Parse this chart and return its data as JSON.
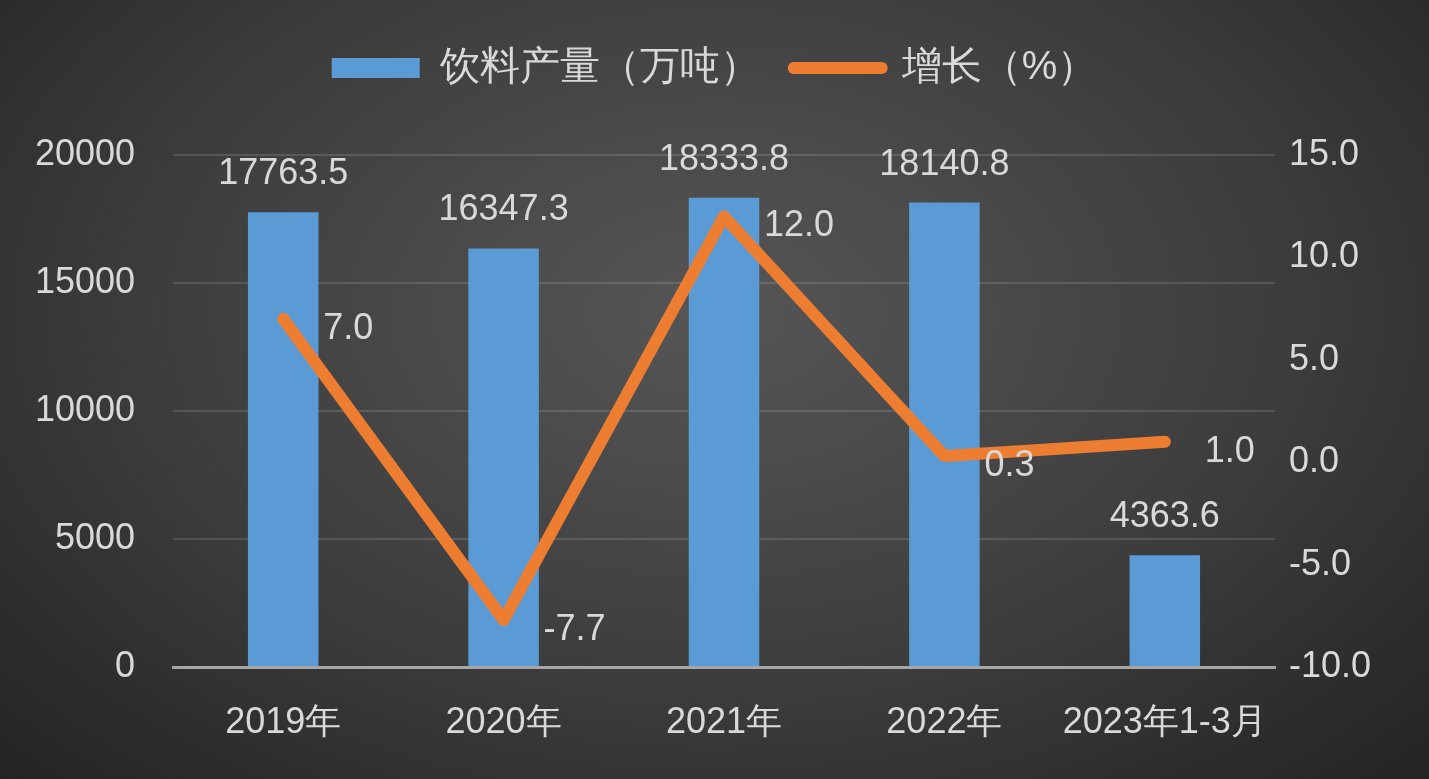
{
  "chart_data": {
    "type": "bar",
    "categories": [
      "2019年",
      "2020年",
      "2021年",
      "2022年",
      "2023年1-3月"
    ],
    "series": [
      {
        "name": "饮料产量（万吨）",
        "color": "#5b9bd5",
        "values": [
          17763.5,
          16347.3,
          18333.8,
          18140.8,
          4363.6
        ],
        "value_labels": [
          "17763.5",
          "16347.3",
          "18333.8",
          "18140.8",
          "4363.6"
        ]
      },
      {
        "name": "增长（%）",
        "type": "line",
        "axis": "y2",
        "color": "#ed7d31",
        "values": [
          7.0,
          -7.7,
          12.0,
          0.3,
          1.0
        ],
        "value_labels": [
          "7.0",
          "-7.7",
          "12.0",
          "0.3",
          "1.0"
        ]
      }
    ],
    "ylim": [
      0,
      20000
    ],
    "yticks": [
      0,
      5000,
      10000,
      15000,
      20000
    ],
    "y2lim": [
      -10,
      15
    ],
    "y2ticks": [
      {
        "value": -10,
        "label": "-10.0"
      },
      {
        "value": -5,
        "label": "-5.0"
      },
      {
        "value": 0,
        "label": "0.0"
      },
      {
        "value": 5,
        "label": "5.0"
      },
      {
        "value": 10,
        "label": "10.0"
      },
      {
        "value": 15,
        "label": "15.0"
      }
    ],
    "grid": "y",
    "legend": "top"
  }
}
